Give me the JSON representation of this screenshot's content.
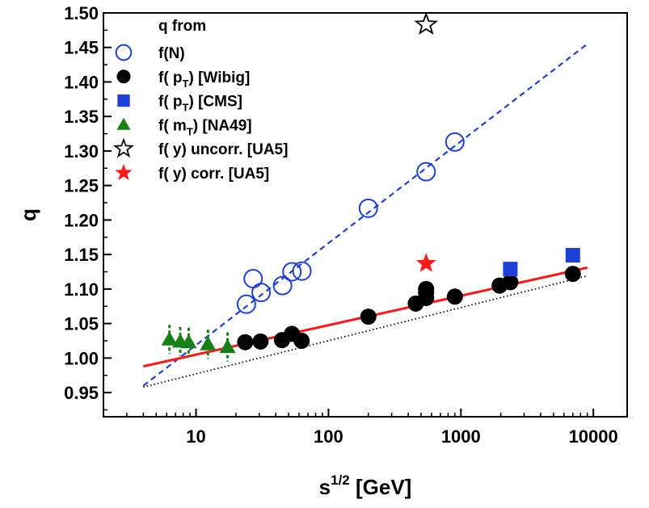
{
  "chart_data": {
    "type": "scatter",
    "xscale": "log",
    "xlim": [
      2,
      18000
    ],
    "ylim": [
      0.915,
      1.5
    ],
    "xticks": [
      10,
      100,
      1000,
      10000
    ],
    "xtick_labels": [
      "10",
      "100",
      "1000",
      "10000"
    ],
    "yticks": [
      0.95,
      1.0,
      1.05,
      1.1,
      1.15,
      1.2,
      1.25,
      1.3,
      1.35,
      1.4,
      1.45,
      1.5
    ],
    "ytick_labels": [
      "0.95",
      "1.00",
      "1.05",
      "1.10",
      "1.15",
      "1.20",
      "1.25",
      "1.30",
      "1.35",
      "1.40",
      "1.45",
      "1.50"
    ],
    "xlabel": {
      "base": "s",
      "sup": "1/2",
      "rest": " [GeV]"
    },
    "ylabel": "q",
    "legend": {
      "title": "q from",
      "position": "top-left",
      "entries": [
        {
          "marker": "open-circle",
          "color": "#1f3fd9",
          "parts": [
            {
              "t": "f(N)"
            }
          ]
        },
        {
          "marker": "filled-circle",
          "color": "#000000",
          "parts": [
            {
              "t": "f( p"
            },
            {
              "t": "T",
              "sub": true
            },
            {
              "t": ") [Wibig]"
            }
          ]
        },
        {
          "marker": "square",
          "color": "#1f3fd9",
          "parts": [
            {
              "t": "f( p"
            },
            {
              "t": "T",
              "sub": true
            },
            {
              "t": ") [CMS]"
            }
          ]
        },
        {
          "marker": "triangle",
          "color": "#158015",
          "parts": [
            {
              "t": "f( m"
            },
            {
              "t": "T",
              "sub": true
            },
            {
              "t": ") [NA49]"
            }
          ]
        },
        {
          "marker": "open-star",
          "color": "#000000",
          "parts": [
            {
              "t": "f( y) uncorr. [UA5]"
            }
          ]
        },
        {
          "marker": "filled-star",
          "color": "#ff1a1a",
          "parts": [
            {
              "t": "f( y) corr. [UA5]"
            }
          ]
        }
      ]
    },
    "series": [
      {
        "marker": "open-circle",
        "color": "#1f3fd9",
        "points": [
          [
            24,
            1.078
          ],
          [
            27,
            1.115
          ],
          [
            31,
            1.095
          ],
          [
            45,
            1.105
          ],
          [
            53,
            1.125
          ],
          [
            63,
            1.126
          ],
          [
            200,
            1.217
          ],
          [
            546,
            1.27
          ],
          [
            900,
            1.313
          ]
        ]
      },
      {
        "marker": "filled-circle",
        "color": "#000000",
        "points": [
          [
            23.5,
            1.023
          ],
          [
            30.7,
            1.024
          ],
          [
            44.6,
            1.026
          ],
          [
            53,
            1.035
          ],
          [
            62.7,
            1.025
          ],
          [
            200,
            1.06
          ],
          [
            456,
            1.079
          ],
          [
            546,
            1.087
          ],
          [
            546,
            1.095
          ],
          [
            546,
            1.1
          ],
          [
            900,
            1.089
          ],
          [
            1960,
            1.105
          ],
          [
            2360,
            1.11
          ],
          [
            7000,
            1.122
          ]
        ]
      },
      {
        "marker": "square",
        "color": "#1f3fd9",
        "points": [
          [
            2360,
            1.129
          ],
          [
            7000,
            1.149
          ]
        ]
      },
      {
        "marker": "triangle",
        "color": "#158015",
        "points": [
          [
            6.3,
            1.027
          ],
          [
            7.6,
            1.024
          ],
          [
            8.8,
            1.023
          ],
          [
            12.3,
            1.02
          ],
          [
            17.3,
            1.016
          ]
        ]
      },
      {
        "marker": "open-star",
        "color": "#000000",
        "points": [
          [
            546,
            1.483
          ]
        ]
      },
      {
        "marker": "filled-star",
        "color": "#ff1a1a",
        "points": [
          [
            546,
            1.137
          ]
        ]
      }
    ],
    "fit_lines": [
      {
        "style": "dashed",
        "color": "#1f3fd9",
        "points": [
          [
            4,
            0.96
          ],
          [
            9000,
            1.455
          ]
        ]
      },
      {
        "style": "solid",
        "color": "#ff1a1a",
        "points": [
          [
            4,
            0.988
          ],
          [
            9000,
            1.131
          ]
        ]
      },
      {
        "style": "dotted",
        "color": "#000000",
        "points": [
          [
            4,
            0.958
          ],
          [
            9000,
            1.119
          ]
        ]
      }
    ]
  }
}
